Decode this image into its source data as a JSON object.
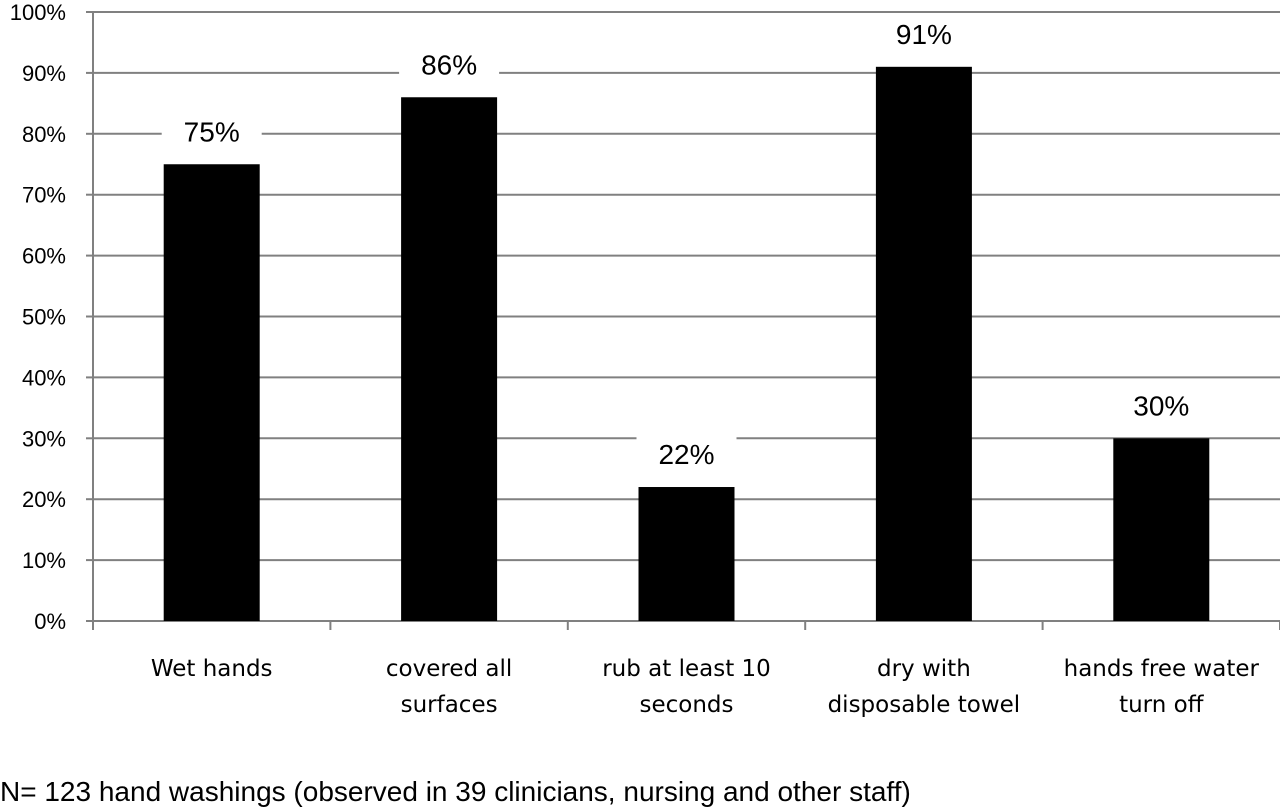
{
  "chart_data": {
    "type": "bar",
    "categories": [
      [
        "Wet hands"
      ],
      [
        "covered all",
        "surfaces"
      ],
      [
        "rub at least 10",
        "seconds"
      ],
      [
        "dry with",
        "disposable towel"
      ],
      [
        "hands free water",
        "turn off"
      ]
    ],
    "values": [
      75,
      86,
      22,
      91,
      30
    ],
    "data_labels": [
      "75%",
      "86%",
      "22%",
      "91%",
      "30%"
    ],
    "yticks": [
      "0%",
      "10%",
      "20%",
      "30%",
      "40%",
      "50%",
      "60%",
      "70%",
      "80%",
      "90%",
      "100%"
    ],
    "ylim": [
      0,
      100
    ],
    "grid": true,
    "bar_color": "#000000",
    "grid_color": "#808080"
  },
  "footnote": "N= 123 hand washings (observed in 39 clinicians, nursing and other staff)"
}
